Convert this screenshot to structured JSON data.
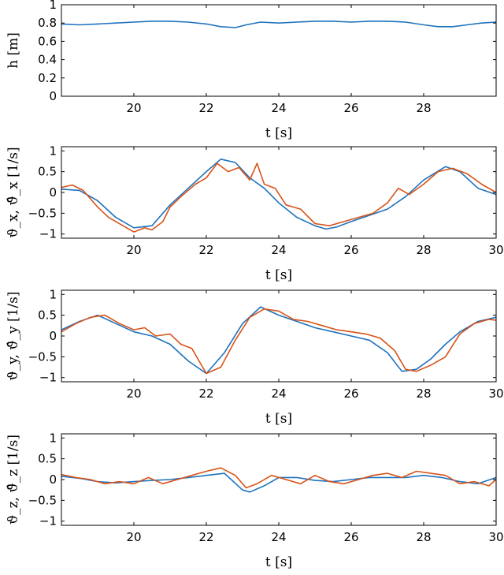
{
  "colors": {
    "estimate": "#1f72bd",
    "measured": "#d95319"
  },
  "chart_data": [
    {
      "type": "line",
      "xlabel": "t [s]",
      "ylabel": "h [m]",
      "xlim": [
        18,
        30
      ],
      "ylim": [
        0,
        1
      ],
      "xticks": [
        20,
        22,
        24,
        26,
        28
      ],
      "yticks": [
        0,
        0.2,
        0.4,
        0.6,
        0.8,
        1
      ],
      "yticklabels": [
        "0",
        "0.2",
        "0.4",
        "0.6",
        "0.8",
        "1"
      ],
      "grid": false,
      "series": [
        {
          "color": "#1f72bd",
          "x": [
            18,
            18.5,
            19,
            19.5,
            20,
            20.5,
            21,
            21.5,
            22,
            22.4,
            22.8,
            23.1,
            23.5,
            24,
            24.5,
            25,
            25.5,
            26,
            26.5,
            27,
            27.5,
            28,
            28.4,
            28.8,
            29.2,
            29.6,
            30
          ],
          "y": [
            0.79,
            0.78,
            0.79,
            0.8,
            0.81,
            0.82,
            0.82,
            0.81,
            0.79,
            0.76,
            0.75,
            0.78,
            0.81,
            0.8,
            0.81,
            0.82,
            0.82,
            0.81,
            0.82,
            0.82,
            0.81,
            0.78,
            0.76,
            0.76,
            0.78,
            0.8,
            0.81
          ]
        }
      ]
    },
    {
      "type": "line",
      "xlabel": "t [s]",
      "ylabel": "ϑ_x, ϑ̂_x [1/s]",
      "xlim": [
        18,
        30
      ],
      "ylim": [
        -1.1,
        1.1
      ],
      "xticks": [
        20,
        22,
        24,
        26,
        28,
        30
      ],
      "yticks": [
        -1,
        -0.5,
        0,
        0.5,
        1
      ],
      "yticklabels": [
        "−1",
        "−0.5",
        "0",
        "0.5",
        "1"
      ],
      "grid": false,
      "series": [
        {
          "color": "#1f72bd",
          "x": [
            18,
            18.5,
            19,
            19.5,
            20,
            20.5,
            21,
            21.5,
            22,
            22.4,
            22.8,
            23.2,
            23.6,
            24,
            24.5,
            25,
            25.3,
            25.6,
            26,
            26.5,
            27,
            27.5,
            28,
            28.6,
            29,
            29.5,
            30
          ],
          "y": [
            0.08,
            0.05,
            -0.2,
            -0.6,
            -0.85,
            -0.8,
            -0.3,
            0.1,
            0.5,
            0.8,
            0.72,
            0.35,
            0.1,
            -0.25,
            -0.6,
            -0.8,
            -0.88,
            -0.83,
            -0.7,
            -0.55,
            -0.4,
            -0.1,
            0.3,
            0.62,
            0.5,
            0.1,
            -0.05
          ]
        },
        {
          "color": "#d95319",
          "x": [
            18,
            18.3,
            18.6,
            19,
            19.3,
            19.7,
            20,
            20.3,
            20.5,
            20.8,
            21,
            21.3,
            21.7,
            22,
            22.3,
            22.6,
            22.9,
            23.2,
            23.4,
            23.6,
            23.9,
            24.2,
            24.6,
            25,
            25.4,
            25.8,
            26.2,
            26.6,
            27,
            27.3,
            27.6,
            28,
            28.4,
            28.8,
            29.2,
            29.6,
            30
          ],
          "y": [
            0.12,
            0.18,
            0.05,
            -0.35,
            -0.6,
            -0.8,
            -0.95,
            -0.85,
            -0.9,
            -0.7,
            -0.35,
            -0.1,
            0.2,
            0.35,
            0.7,
            0.5,
            0.6,
            0.3,
            0.7,
            0.2,
            0.1,
            -0.3,
            -0.4,
            -0.75,
            -0.8,
            -0.7,
            -0.6,
            -0.5,
            -0.25,
            0.1,
            -0.05,
            0.2,
            0.5,
            0.58,
            0.45,
            0.2,
            0.0
          ]
        }
      ]
    },
    {
      "type": "line",
      "xlabel": "t [s]",
      "ylabel": "ϑ_y, ϑ̂_y [1/s]",
      "xlim": [
        18,
        30
      ],
      "ylim": [
        -1.1,
        1.1
      ],
      "xticks": [
        20,
        22,
        24,
        26,
        28,
        30
      ],
      "yticks": [
        -1,
        -0.5,
        0,
        0.5,
        1
      ],
      "yticklabels": [
        "−1",
        "−0.5",
        "0",
        "0.5",
        "1"
      ],
      "grid": false,
      "series": [
        {
          "color": "#1f72bd",
          "x": [
            18,
            18.5,
            19,
            19.5,
            20,
            20.5,
            21,
            21.5,
            22,
            22.5,
            23,
            23.5,
            24,
            24.5,
            25,
            25.5,
            26,
            26.5,
            27,
            27.4,
            27.8,
            28.2,
            28.6,
            29,
            29.5,
            30
          ],
          "y": [
            0.15,
            0.35,
            0.5,
            0.3,
            0.1,
            0.0,
            -0.2,
            -0.6,
            -0.9,
            -0.4,
            0.3,
            0.7,
            0.5,
            0.35,
            0.2,
            0.1,
            0.0,
            -0.1,
            -0.4,
            -0.85,
            -0.8,
            -0.55,
            -0.2,
            0.1,
            0.35,
            0.45
          ]
        },
        {
          "color": "#d95319",
          "x": [
            18,
            18.4,
            18.8,
            19.2,
            19.6,
            20,
            20.3,
            20.6,
            21,
            21.3,
            21.6,
            22,
            22.4,
            22.8,
            23.2,
            23.6,
            24,
            24.4,
            24.8,
            25.2,
            25.6,
            26,
            26.4,
            26.8,
            27.2,
            27.5,
            27.8,
            28.2,
            28.6,
            29,
            29.4,
            29.8,
            30
          ],
          "y": [
            0.1,
            0.3,
            0.45,
            0.5,
            0.3,
            0.15,
            0.2,
            0.0,
            0.05,
            -0.2,
            -0.3,
            -0.9,
            -0.75,
            -0.1,
            0.45,
            0.65,
            0.6,
            0.4,
            0.35,
            0.25,
            0.15,
            0.1,
            0.05,
            -0.05,
            -0.35,
            -0.8,
            -0.85,
            -0.7,
            -0.5,
            0.05,
            0.3,
            0.4,
            0.38
          ]
        }
      ]
    },
    {
      "type": "line",
      "xlabel": "t [s]",
      "ylabel": "ϑ_z, ϑ̂_z [1/s]",
      "xlim": [
        18,
        30
      ],
      "ylim": [
        -1.1,
        1.1
      ],
      "xticks": [
        20,
        22,
        24,
        26,
        28,
        30
      ],
      "yticks": [
        -1,
        -0.5,
        0,
        0.5,
        1
      ],
      "yticklabels": [
        "−1",
        "−0.5",
        "0",
        "0.5",
        "1"
      ],
      "grid": false,
      "series": [
        {
          "color": "#1f72bd",
          "x": [
            18,
            18.5,
            19,
            19.5,
            20,
            20.5,
            21,
            21.5,
            22,
            22.5,
            23,
            23.2,
            23.6,
            24,
            24.5,
            25,
            25.5,
            26,
            26.5,
            27,
            27.5,
            28,
            28.5,
            29,
            29.5,
            30
          ],
          "y": [
            0.08,
            0.03,
            -0.05,
            -0.08,
            -0.05,
            -0.02,
            0.0,
            0.05,
            0.1,
            0.15,
            -0.25,
            -0.3,
            -0.15,
            0.05,
            0.05,
            -0.02,
            -0.05,
            0.0,
            0.05,
            0.05,
            0.05,
            0.1,
            0.05,
            -0.05,
            -0.1,
            0.05
          ]
        },
        {
          "color": "#d95319",
          "x": [
            18,
            18.4,
            18.8,
            19.2,
            19.6,
            20,
            20.4,
            20.8,
            21.2,
            21.6,
            22,
            22.4,
            22.8,
            23.1,
            23.4,
            23.8,
            24.2,
            24.6,
            25,
            25.4,
            25.8,
            26.2,
            26.6,
            27,
            27.4,
            27.8,
            28.2,
            28.6,
            29,
            29.4,
            29.8,
            30
          ],
          "y": [
            0.12,
            0.05,
            0.0,
            -0.1,
            -0.05,
            -0.1,
            0.05,
            -0.1,
            0.0,
            0.1,
            0.2,
            0.28,
            0.1,
            -0.2,
            -0.1,
            0.1,
            0.0,
            -0.1,
            0.1,
            -0.05,
            -0.1,
            0.0,
            0.1,
            0.15,
            0.05,
            0.2,
            0.15,
            0.1,
            -0.1,
            -0.05,
            -0.15,
            0.0
          ]
        }
      ]
    }
  ]
}
